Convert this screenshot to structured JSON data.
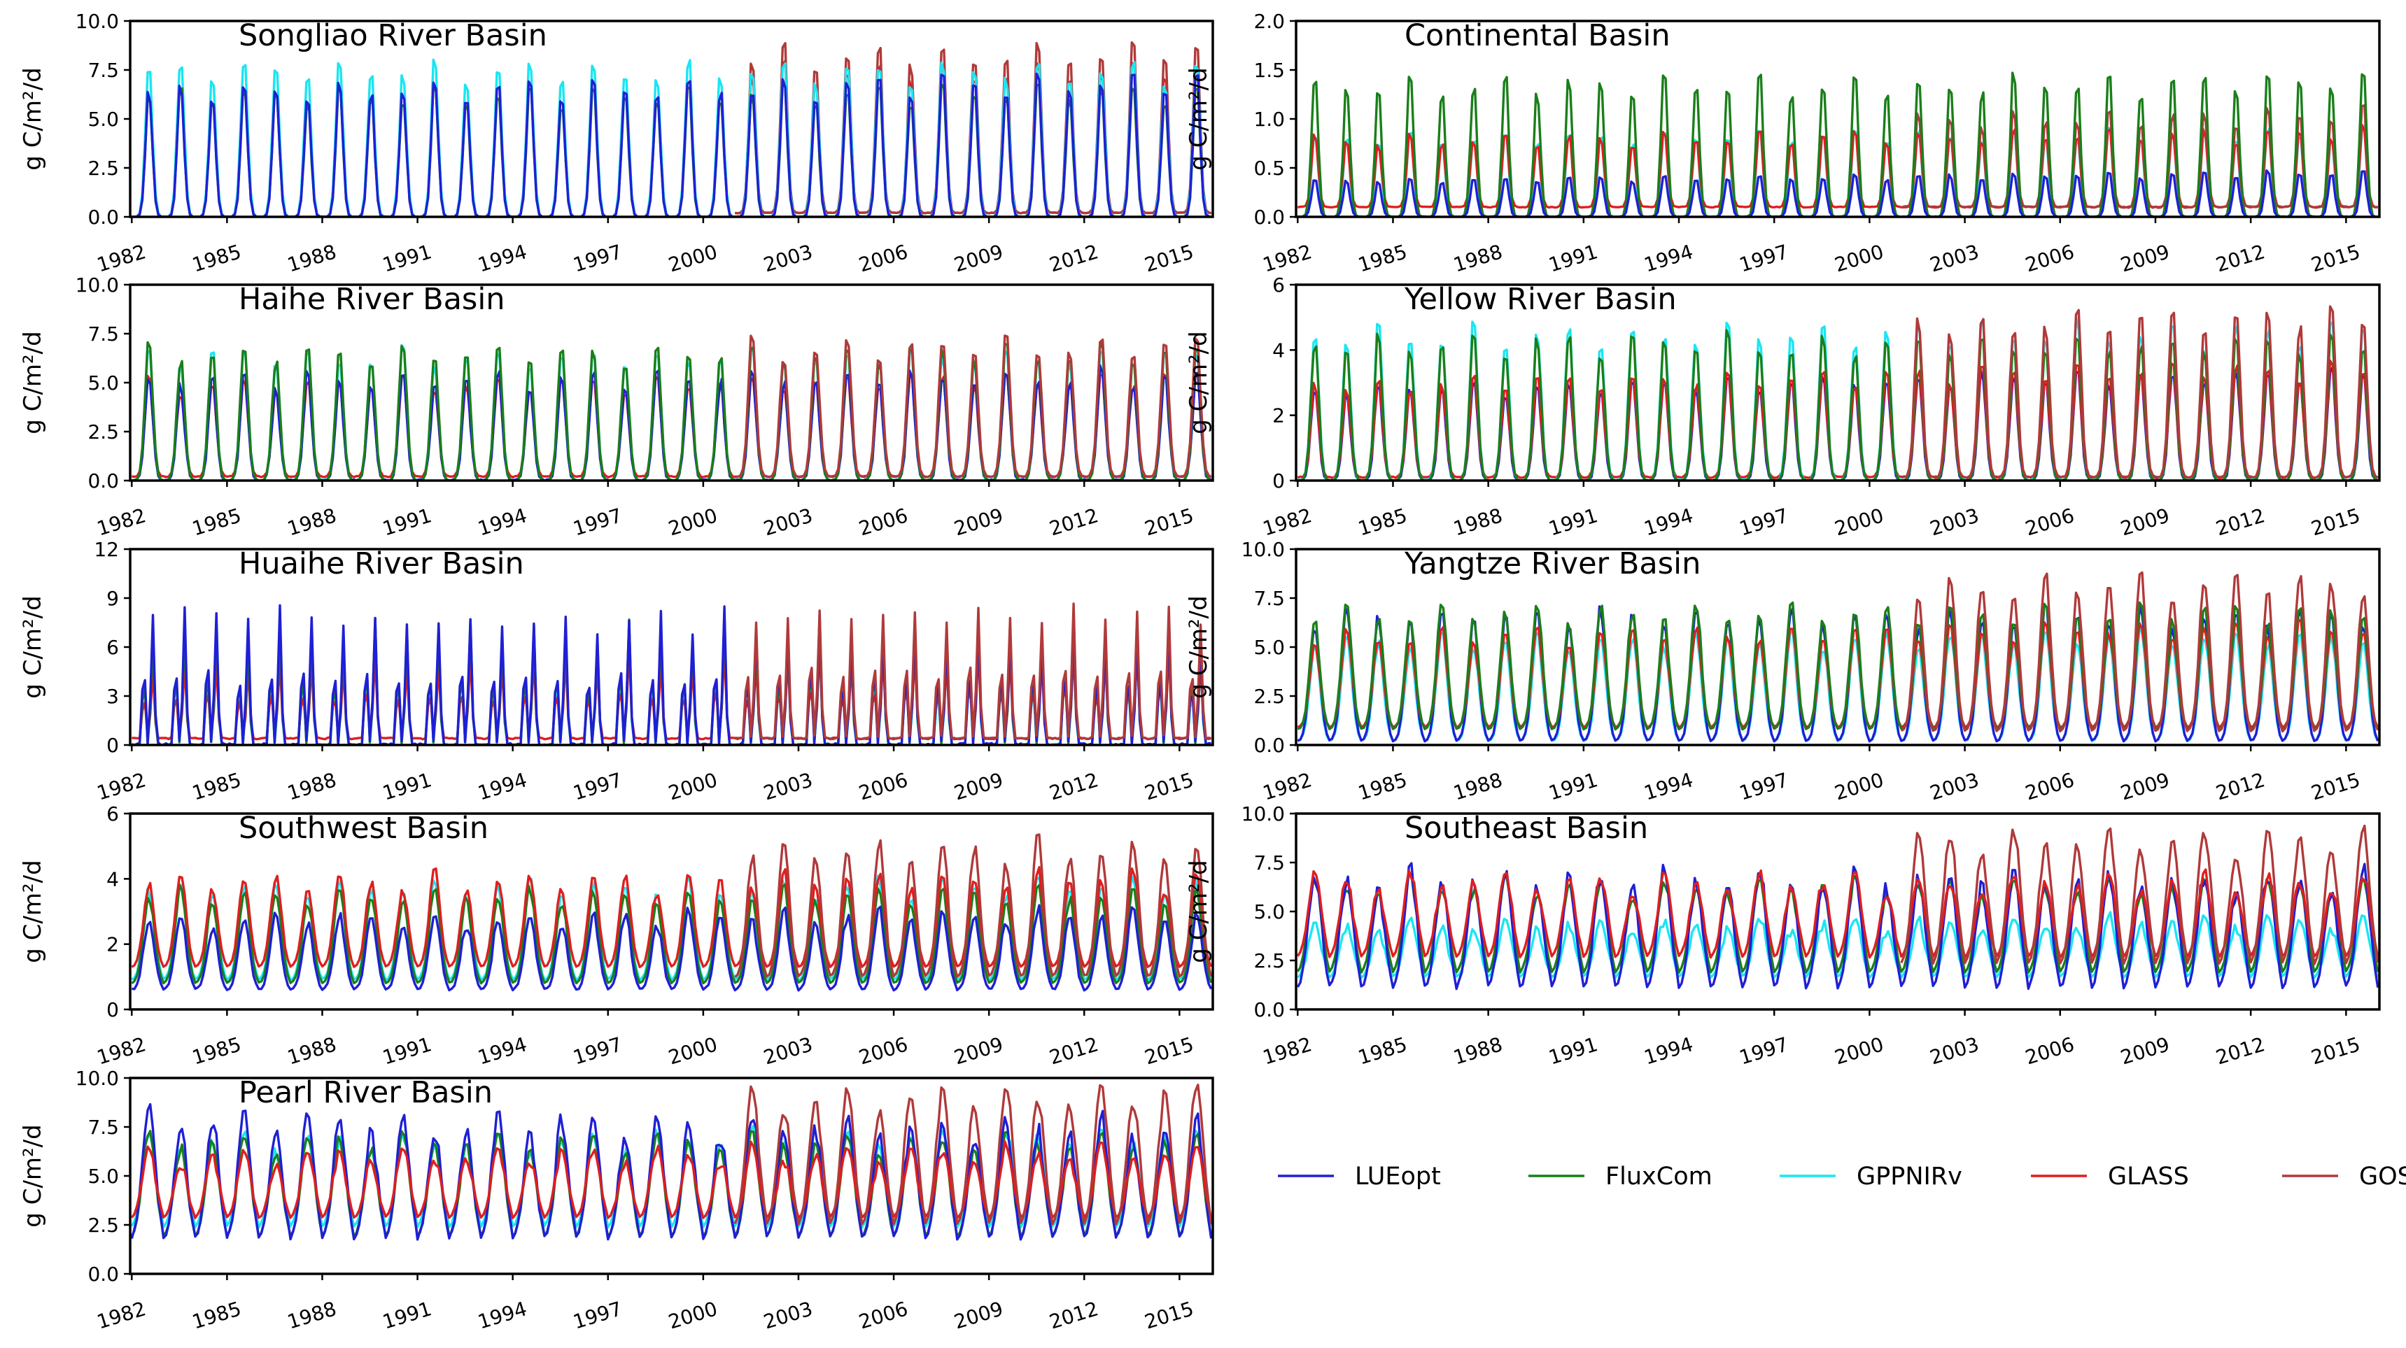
{
  "chart_data": {
    "type": "line",
    "start_year": 1982,
    "end_year": 2015,
    "time_step": "monthly",
    "xticks": [
      1982,
      1985,
      1988,
      1991,
      1994,
      1997,
      2000,
      2003,
      2006,
      2009,
      2012,
      2015
    ],
    "xtick_labels": [
      "1982",
      "1985",
      "1988",
      "1991",
      "1994",
      "1997",
      "2000",
      "2003",
      "2006",
      "2009",
      "2012",
      "2015"
    ],
    "ylabel": "g C/m²/d",
    "legend": {
      "placement": "bottom-right",
      "entries": [
        {
          "key": "LUEopt",
          "label": "LUEopt",
          "color": "#1f1fd6"
        },
        {
          "key": "FluxCom",
          "label": "FluxCom",
          "color": "#1a7f1a"
        },
        {
          "key": "GPPNIRv",
          "label": "GPPNIRv",
          "color": "#19e6f2"
        },
        {
          "key": "GLASS",
          "label": "GLASS",
          "color": "#e01e1e"
        },
        {
          "key": "GOSIF",
          "label": "GOSIF",
          "color": "#b03a3a"
        }
      ]
    },
    "panels": [
      {
        "id": "songliao",
        "title": "Songliao River Basin",
        "position": "row1-left",
        "ylim": [
          0,
          10
        ],
        "yticks": [
          0,
          2.5,
          5,
          7.5,
          10
        ],
        "ytick_labels": [
          "0.0",
          "2.5",
          "5.0",
          "7.5",
          "10.0"
        ],
        "draw_order": [
          "GLASS",
          "GOSIF",
          "GPPNIRv",
          "FluxCom",
          "LUEopt"
        ],
        "series": [
          {
            "key": "LUEopt",
            "base": 0.0,
            "peak": 6.6,
            "trend": 0.7,
            "noise": 0.1,
            "shape": 1.2,
            "width": 0.27,
            "start": 1982
          },
          {
            "key": "FluxCom",
            "base": 0.0,
            "peak": 6.5,
            "trend": 0.2,
            "noise": 0.1,
            "shape": 1.2,
            "width": 0.27,
            "start": 1982
          },
          {
            "key": "GPPNIRv",
            "base": 0.0,
            "peak": 7.8,
            "trend": 0.0,
            "noise": 0.1,
            "shape": 1.2,
            "width": 0.28,
            "start": 1982
          },
          {
            "key": "GLASS",
            "base": 0.2,
            "peak": 7.5,
            "trend": 0.4,
            "noise": 0.1,
            "shape": 1.2,
            "width": 0.27,
            "start": 2001
          },
          {
            "key": "GOSIF",
            "base": 0.2,
            "peak": 8.0,
            "trend": 1.0,
            "noise": 0.15,
            "shape": 1.2,
            "width": 0.27,
            "start": 2001
          }
        ]
      },
      {
        "id": "continental",
        "title": "Continental Basin",
        "position": "row1-right",
        "ylim": [
          0,
          2
        ],
        "yticks": [
          0,
          0.5,
          1,
          1.5,
          2
        ],
        "ytick_labels": [
          "0.0",
          "0.5",
          "1.0",
          "1.5",
          "2.0"
        ],
        "draw_order": [
          "GPPNIRv",
          "GLASS",
          "GOSIF",
          "FluxCom",
          "LUEopt"
        ],
        "series": [
          {
            "key": "LUEopt",
            "base": 0.0,
            "peak": 0.38,
            "trend": 0.1,
            "noise": 0.02,
            "shape": 1.3,
            "width": 0.27,
            "start": 1982
          },
          {
            "key": "FluxCom",
            "base": 0.0,
            "peak": 1.4,
            "trend": 0.05,
            "noise": 0.03,
            "shape": 1.3,
            "width": 0.27,
            "start": 1982
          },
          {
            "key": "GPPNIRv",
            "base": 0.0,
            "peak": 0.85,
            "trend": 0.05,
            "noise": 0.03,
            "shape": 1.3,
            "width": 0.27,
            "start": 1982
          },
          {
            "key": "GLASS",
            "base": 0.1,
            "peak": 0.8,
            "trend": 0.1,
            "noise": 0.03,
            "shape": 1.3,
            "width": 0.27,
            "start": 1982
          },
          {
            "key": "GOSIF",
            "base": 0.1,
            "peak": 0.9,
            "trend": 0.2,
            "noise": 0.05,
            "shape": 1.3,
            "width": 0.27,
            "start": 2001
          }
        ]
      },
      {
        "id": "haihe",
        "title": "Haihe River Basin",
        "position": "row2-left",
        "ylim": [
          0,
          10
        ],
        "yticks": [
          0,
          2.5,
          5,
          7.5,
          10
        ],
        "ytick_labels": [
          "0.0",
          "2.5",
          "5.0",
          "7.5",
          "10.0"
        ],
        "draw_order": [
          "GPPNIRv",
          "GLASS",
          "LUEopt",
          "FluxCom",
          "GOSIF"
        ],
        "series": [
          {
            "key": "LUEopt",
            "base": 0.0,
            "peak": 5.2,
            "trend": 0.3,
            "noise": 0.4,
            "shape": 1.1,
            "width": 0.3,
            "start": 1982
          },
          {
            "key": "FluxCom",
            "base": 0.0,
            "peak": 6.7,
            "trend": 0.0,
            "noise": 0.15,
            "shape": 1.1,
            "width": 0.3,
            "start": 1982
          },
          {
            "key": "GPPNIRv",
            "base": 0.0,
            "peak": 6.5,
            "trend": 0.0,
            "noise": 0.3,
            "shape": 1.1,
            "width": 0.3,
            "start": 1982
          },
          {
            "key": "GLASS",
            "base": 0.2,
            "peak": 5.0,
            "trend": 0.4,
            "noise": 0.2,
            "shape": 1.1,
            "width": 0.3,
            "start": 1982
          },
          {
            "key": "GOSIF",
            "base": 0.2,
            "peak": 6.6,
            "trend": 0.6,
            "noise": 0.15,
            "shape": 1.1,
            "width": 0.3,
            "start": 2001
          }
        ]
      },
      {
        "id": "yellow",
        "title": "Yellow River Basin",
        "position": "row2-right",
        "ylim": [
          0,
          6
        ],
        "yticks": [
          0,
          2,
          4,
          6
        ],
        "ytick_labels": [
          "0",
          "2",
          "4",
          "6"
        ],
        "draw_order": [
          "LUEopt",
          "GLASS",
          "GPPNIRv",
          "FluxCom",
          "GOSIF"
        ],
        "series": [
          {
            "key": "LUEopt",
            "base": 0.0,
            "peak": 2.8,
            "trend": 0.6,
            "noise": 0.15,
            "shape": 1.1,
            "width": 0.3,
            "start": 1982
          },
          {
            "key": "FluxCom",
            "base": 0.0,
            "peak": 4.3,
            "trend": 0.0,
            "noise": 0.1,
            "shape": 1.1,
            "width": 0.3,
            "start": 1982
          },
          {
            "key": "GPPNIRv",
            "base": 0.0,
            "peak": 4.5,
            "trend": 0.2,
            "noise": 0.25,
            "shape": 1.1,
            "width": 0.3,
            "start": 1982
          },
          {
            "key": "GLASS",
            "base": 0.1,
            "peak": 3.0,
            "trend": 0.6,
            "noise": 0.15,
            "shape": 1.1,
            "width": 0.3,
            "start": 1982
          },
          {
            "key": "GOSIF",
            "base": 0.1,
            "peak": 4.4,
            "trend": 0.9,
            "noise": 0.2,
            "shape": 1.1,
            "width": 0.3,
            "start": 2001
          }
        ]
      },
      {
        "id": "huaihe",
        "title": "Huaihe River Basin",
        "position": "row3-left",
        "ylim": [
          0,
          12
        ],
        "yticks": [
          0,
          3,
          6,
          9,
          12
        ],
        "ytick_labels": [
          "0",
          "3",
          "6",
          "9",
          "12"
        ],
        "draw_order": [
          "GPPNIRv",
          "GLASS",
          "FluxCom",
          "LUEopt",
          "GOSIF"
        ],
        "bimodal": true,
        "series": [
          {
            "key": "LUEopt",
            "base": 0.0,
            "peak": 8.2,
            "trend": -1.2,
            "noise": 0.8,
            "shape": 1.0,
            "width": 0.32,
            "start": 1982
          },
          {
            "key": "FluxCom",
            "base": 0.0,
            "peak": 7.2,
            "trend": 0.0,
            "noise": 0.3,
            "shape": 1.0,
            "width": 0.32,
            "start": 1982
          },
          {
            "key": "GPPNIRv",
            "base": 0.0,
            "peak": 6.8,
            "trend": -0.8,
            "noise": 0.4,
            "shape": 1.0,
            "width": 0.32,
            "start": 1982
          },
          {
            "key": "GLASS",
            "base": 0.4,
            "peak": 5.0,
            "trend": 0.8,
            "noise": 0.3,
            "shape": 1.0,
            "width": 0.32,
            "start": 1982
          },
          {
            "key": "GOSIF",
            "base": 0.4,
            "peak": 7.6,
            "trend": 0.6,
            "noise": 0.3,
            "shape": 1.0,
            "width": 0.32,
            "start": 2001
          }
        ]
      },
      {
        "id": "yangtze",
        "title": "Yangtze River Basin",
        "position": "row3-right",
        "ylim": [
          0,
          10
        ],
        "yticks": [
          0,
          2.5,
          5,
          7.5,
          10
        ],
        "ytick_labels": [
          "0.0",
          "2.5",
          "5.0",
          "7.5",
          "10.0"
        ],
        "draw_order": [
          "GPPNIRv",
          "LUEopt",
          "GLASS",
          "FluxCom",
          "GOSIF"
        ],
        "series": [
          {
            "key": "LUEopt",
            "base": 0.2,
            "peak": 6.6,
            "trend": 0.0,
            "noise": 0.25,
            "shape": 1.0,
            "width": 0.38,
            "start": 1982
          },
          {
            "key": "FluxCom",
            "base": 0.8,
            "peak": 6.7,
            "trend": 0.2,
            "noise": 0.15,
            "shape": 1.0,
            "width": 0.38,
            "start": 1982
          },
          {
            "key": "GPPNIRv",
            "base": 0.2,
            "peak": 5.3,
            "trend": 0.3,
            "noise": 0.15,
            "shape": 1.0,
            "width": 0.38,
            "start": 1982
          },
          {
            "key": "GLASS",
            "base": 0.9,
            "peak": 5.5,
            "trend": 0.6,
            "noise": 0.15,
            "shape": 1.0,
            "width": 0.38,
            "start": 1982
          },
          {
            "key": "GOSIF",
            "base": 0.7,
            "peak": 7.6,
            "trend": 0.8,
            "noise": 0.2,
            "shape": 1.0,
            "width": 0.38,
            "start": 2001
          }
        ]
      },
      {
        "id": "southwest",
        "title": "Southwest Basin",
        "position": "row4-left",
        "ylim": [
          0,
          6
        ],
        "yticks": [
          0,
          2,
          4,
          6
        ],
        "ytick_labels": [
          "0",
          "2",
          "4",
          "6"
        ],
        "draw_order": [
          "GPPNIRv",
          "FluxCom",
          "LUEopt",
          "GLASS",
          "GOSIF"
        ],
        "series": [
          {
            "key": "LUEopt",
            "base": 0.6,
            "peak": 2.7,
            "trend": 0.2,
            "noise": 0.2,
            "shape": 1.0,
            "width": 0.4,
            "start": 1982
          },
          {
            "key": "FluxCom",
            "base": 0.8,
            "peak": 3.5,
            "trend": 0.0,
            "noise": 0.1,
            "shape": 1.0,
            "width": 0.4,
            "start": 1982
          },
          {
            "key": "GPPNIRv",
            "base": 0.9,
            "peak": 3.7,
            "trend": 0.1,
            "noise": 0.15,
            "shape": 1.0,
            "width": 0.4,
            "start": 1982
          },
          {
            "key": "GLASS",
            "base": 1.3,
            "peak": 3.9,
            "trend": 0.1,
            "noise": 0.1,
            "shape": 1.0,
            "width": 0.4,
            "start": 1982
          },
          {
            "key": "GOSIF",
            "base": 1.0,
            "peak": 4.8,
            "trend": 0.1,
            "noise": 0.2,
            "shape": 1.0,
            "width": 0.4,
            "start": 2001
          }
        ]
      },
      {
        "id": "southeast",
        "title": "Southeast Basin",
        "position": "row4-right",
        "ylim": [
          0,
          10
        ],
        "yticks": [
          0,
          2.5,
          5,
          7.5,
          10
        ],
        "ytick_labels": [
          "0.0",
          "2.5",
          "5.0",
          "7.5",
          "10.0"
        ],
        "draw_order": [
          "GPPNIRv",
          "FluxCom",
          "LUEopt",
          "GLASS",
          "GOSIF"
        ],
        "series": [
          {
            "key": "LUEopt",
            "base": 1.0,
            "peak": 6.6,
            "trend": 0.0,
            "noise": 0.6,
            "shape": 0.9,
            "width": 0.45,
            "start": 1982
          },
          {
            "key": "FluxCom",
            "base": 1.8,
            "peak": 6.3,
            "trend": 0.0,
            "noise": 0.2,
            "shape": 0.9,
            "width": 0.45,
            "start": 1982
          },
          {
            "key": "GPPNIRv",
            "base": 1.6,
            "peak": 4.2,
            "trend": 0.3,
            "noise": 0.3,
            "shape": 0.9,
            "width": 0.45,
            "start": 1982
          },
          {
            "key": "GLASS",
            "base": 2.6,
            "peak": 6.5,
            "trend": 0.0,
            "noise": 0.25,
            "shape": 0.9,
            "width": 0.45,
            "start": 1982
          },
          {
            "key": "GOSIF",
            "base": 2.2,
            "peak": 8.2,
            "trend": 0.5,
            "noise": 0.25,
            "shape": 0.9,
            "width": 0.45,
            "start": 2001
          }
        ]
      },
      {
        "id": "pearl",
        "title": "Pearl River Basin",
        "position": "row5-left",
        "ylim": [
          0,
          10
        ],
        "yticks": [
          0,
          2.5,
          5,
          7.5,
          10
        ],
        "ytick_labels": [
          "0.0",
          "2.5",
          "5.0",
          "7.5",
          "10.0"
        ],
        "draw_order": [
          "GPPNIRv",
          "FluxCom",
          "LUEopt",
          "GLASS",
          "GOSIF"
        ],
        "series": [
          {
            "key": "LUEopt",
            "base": 1.7,
            "peak": 7.8,
            "trend": -0.5,
            "noise": 0.6,
            "shape": 0.9,
            "width": 0.45,
            "start": 1982
          },
          {
            "key": "FluxCom",
            "base": 1.8,
            "peak": 6.8,
            "trend": 0.0,
            "noise": 0.2,
            "shape": 0.9,
            "width": 0.45,
            "start": 1982
          },
          {
            "key": "GPPNIRv",
            "base": 2.3,
            "peak": 6.7,
            "trend": 0.3,
            "noise": 0.25,
            "shape": 0.9,
            "width": 0.45,
            "start": 1982
          },
          {
            "key": "GLASS",
            "base": 2.8,
            "peak": 6.0,
            "trend": 0.2,
            "noise": 0.2,
            "shape": 0.9,
            "width": 0.45,
            "start": 1982
          },
          {
            "key": "GOSIF",
            "base": 2.4,
            "peak": 8.4,
            "trend": 0.8,
            "noise": 0.25,
            "shape": 0.9,
            "width": 0.45,
            "start": 2001
          }
        ]
      }
    ]
  }
}
